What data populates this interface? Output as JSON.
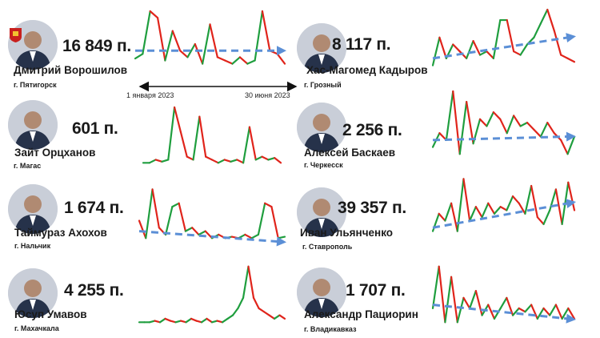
{
  "colors": {
    "rise": "#1f9e3e",
    "fall": "#e0241b",
    "trend": "#5b8fd6",
    "axis": "#111111"
  },
  "period": {
    "start": "1 января 2023",
    "end": "30 июня 2023"
  },
  "cards": [
    {
      "posts": "16 849 п.",
      "name": "Дмитрий Ворошилов",
      "city": "г. Пятигорск",
      "emblem": "flag-emblem-icon"
    },
    {
      "posts": "8 117 п.",
      "name": "Хас-Магомед Кадыров",
      "city": "г. Грозный"
    },
    {
      "posts": "601 п.",
      "name": "Зайт Орцханов",
      "city": "г. Магас"
    },
    {
      "posts": "2 256 п.",
      "name": "Алексей Баскаев",
      "city": "г. Черкесск"
    },
    {
      "posts": "1 674 п.",
      "name": "Таймураз Ахохов",
      "city": "г. Нальчик"
    },
    {
      "posts": "39 357 п.",
      "name": "Иван Ульянченко",
      "city": "г. Ставрополь"
    },
    {
      "posts": "4 255 п.",
      "name": "Юсуп Умавов",
      "city": "г. Махачкала"
    },
    {
      "posts": "1 707 п.",
      "name": "Александр Пациорин",
      "city": "г. Владикавказ"
    }
  ],
  "chart_data": [
    {
      "type": "line",
      "values": [
        0.28,
        0.35,
        1.0,
        0.9,
        0.25,
        0.7,
        0.4,
        0.3,
        0.5,
        0.2,
        0.8,
        0.3,
        0.25,
        0.2,
        0.3,
        0.2,
        0.25,
        1.0,
        0.4,
        0.35,
        0.2
      ],
      "trend": [
        0.4,
        0.4
      ],
      "trend_visible": true
    },
    {
      "type": "line",
      "values": [
        0.2,
        0.6,
        0.3,
        0.5,
        0.4,
        0.3,
        0.55,
        0.35,
        0.4,
        0.3,
        0.85,
        0.85,
        0.4,
        0.35,
        0.5,
        0.6,
        0.8,
        1.0,
        0.7,
        0.35,
        0.3,
        0.25
      ],
      "trend": [
        0.3,
        0.6
      ],
      "trend_visible": true
    },
    {
      "type": "line",
      "values": [
        0.1,
        0.1,
        0.15,
        0.12,
        0.15,
        1.0,
        0.6,
        0.2,
        0.15,
        0.85,
        0.2,
        0.15,
        0.1,
        0.15,
        0.12,
        0.15,
        0.1,
        0.68,
        0.15,
        0.2,
        0.15,
        0.18,
        0.1
      ],
      "trend_visible": false
    },
    {
      "type": "line",
      "values": [
        0.2,
        0.4,
        0.3,
        1.0,
        0.1,
        0.85,
        0.25,
        0.6,
        0.5,
        0.7,
        0.6,
        0.4,
        0.65,
        0.5,
        0.55,
        0.45,
        0.35,
        0.55,
        0.4,
        0.3,
        0.1,
        0.35
      ],
      "trend": [
        0.3,
        0.35
      ],
      "trend_visible": true
    },
    {
      "type": "line",
      "values": [
        0.35,
        0.1,
        0.8,
        0.25,
        0.15,
        0.55,
        0.6,
        0.2,
        0.25,
        0.15,
        0.2,
        0.1,
        0.15,
        0.1,
        0.12,
        0.1,
        0.15,
        0.1,
        0.15,
        0.6,
        0.55,
        0.1,
        0.12
      ],
      "trend": [
        0.2,
        0.05
      ],
      "trend_visible": true
    },
    {
      "type": "line",
      "values": [
        0.2,
        0.45,
        0.35,
        0.6,
        0.2,
        0.95,
        0.35,
        0.55,
        0.4,
        0.6,
        0.45,
        0.55,
        0.5,
        0.7,
        0.6,
        0.45,
        0.85,
        0.4,
        0.3,
        0.5,
        0.8,
        0.3,
        0.9,
        0.5
      ],
      "trend": [
        0.25,
        0.6
      ],
      "trend_visible": true
    },
    {
      "type": "line",
      "values": [
        0.1,
        0.1,
        0.1,
        0.12,
        0.1,
        0.15,
        0.12,
        0.1,
        0.12,
        0.1,
        0.15,
        0.12,
        0.1,
        0.15,
        0.1,
        0.12,
        0.1,
        0.15,
        0.2,
        0.3,
        0.45,
        0.9,
        0.45,
        0.3,
        0.25,
        0.2,
        0.15,
        0.2,
        0.15
      ],
      "trend_visible": false
    },
    {
      "type": "line",
      "values": [
        0.3,
        0.9,
        0.1,
        0.75,
        0.1,
        0.45,
        0.3,
        0.55,
        0.2,
        0.35,
        0.15,
        0.3,
        0.45,
        0.2,
        0.3,
        0.25,
        0.35,
        0.15,
        0.3,
        0.2,
        0.35,
        0.15,
        0.3,
        0.15
      ],
      "trend": [
        0.35,
        0.15
      ],
      "trend_visible": true
    }
  ]
}
